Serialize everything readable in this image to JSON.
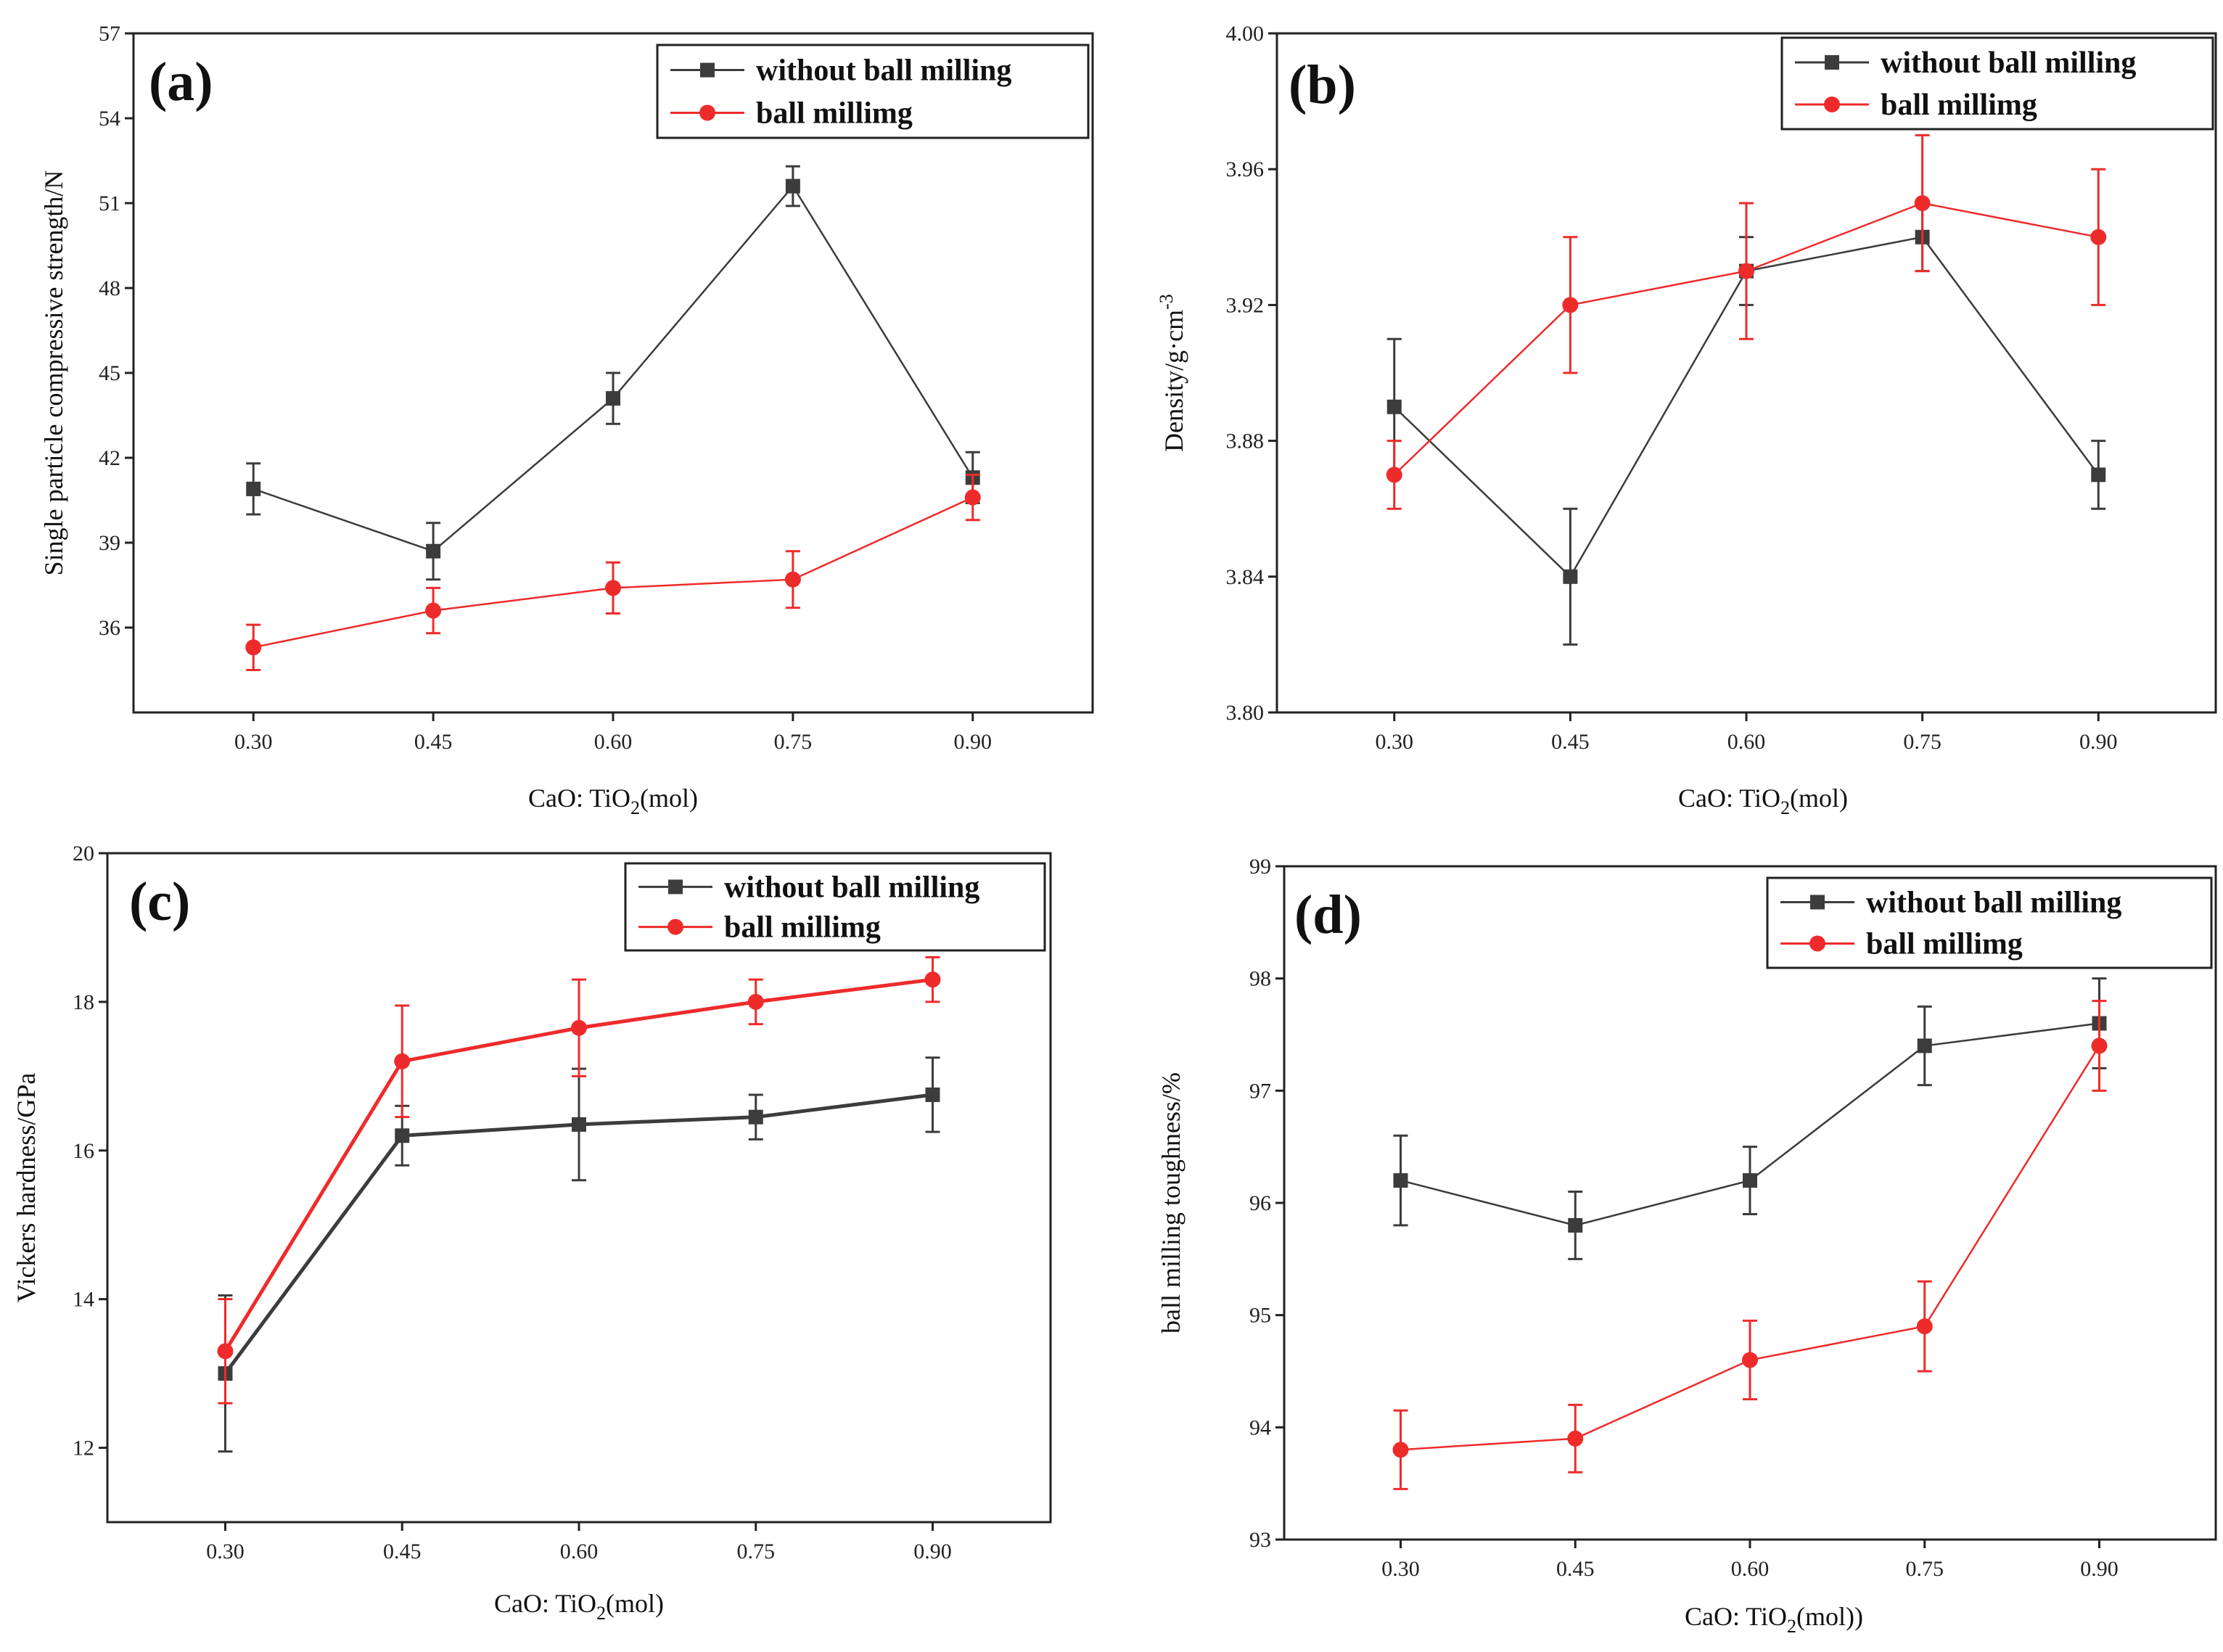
{
  "legend": {
    "black_label": "without ball milling",
    "red_label": "ball millimg"
  },
  "colors": {
    "black": "#3c3c3c",
    "red": "#ee2b2b"
  },
  "chart_data": [
    {
      "type": "line",
      "panel_label": "(a)",
      "xlabel": {
        "pre": "CaO: TiO",
        "sub": "2",
        "post": "(mol)"
      },
      "ylabel": "Single particle compressive strength/N",
      "categories": [
        0.3,
        0.45,
        0.6,
        0.75,
        0.9
      ],
      "x_tick_labels": [
        "0.30",
        "0.45",
        "0.60",
        "0.75",
        "0.90"
      ],
      "ylim": [
        33,
        57
      ],
      "y_ticks": [
        36,
        39,
        42,
        45,
        48,
        51,
        54,
        57
      ],
      "series": [
        {
          "name": "without ball milling",
          "color": "black",
          "marker": "square",
          "values": [
            40.9,
            38.7,
            44.1,
            51.6,
            41.3
          ],
          "errors": [
            0.9,
            1.0,
            0.9,
            0.7,
            0.9
          ]
        },
        {
          "name": "ball millimg",
          "color": "red",
          "marker": "circle",
          "values": [
            35.3,
            36.6,
            37.4,
            37.7,
            40.6
          ],
          "errors": [
            0.8,
            0.8,
            0.9,
            1.0,
            0.8
          ]
        }
      ]
    },
    {
      "type": "line",
      "panel_label": "(b)",
      "xlabel": {
        "pre": "CaO: TiO",
        "sub": "2",
        "post": "(mol)"
      },
      "ylabel": "Density/g·cm",
      "ylabel_sup": "-3",
      "categories": [
        0.3,
        0.45,
        0.6,
        0.75,
        0.9
      ],
      "x_tick_labels": [
        "0.30",
        "0.45",
        "0.60",
        "0.75",
        "0.90"
      ],
      "ylim": [
        3.8,
        4.0
      ],
      "y_ticks": [
        "3.80",
        "3.84",
        "3.88",
        "3.92",
        "3.96",
        "4.00"
      ],
      "series": [
        {
          "name": "without ball milling",
          "color": "black",
          "marker": "square",
          "values": [
            3.89,
            3.84,
            3.93,
            3.94,
            3.87
          ],
          "errors": [
            0.02,
            0.02,
            0.01,
            0.01,
            0.01
          ]
        },
        {
          "name": "ball millimg",
          "color": "red",
          "marker": "circle",
          "values": [
            3.87,
            3.92,
            3.93,
            3.95,
            3.94
          ],
          "errors": [
            0.01,
            0.02,
            0.02,
            0.02,
            0.02
          ]
        }
      ]
    },
    {
      "type": "line",
      "panel_label": "(c)",
      "xlabel": {
        "pre": "CaO: TiO",
        "sub": "2",
        "post": "(mol)"
      },
      "ylabel": "Vickers hardness/GPa",
      "categories": [
        0.3,
        0.45,
        0.6,
        0.75,
        0.9
      ],
      "x_tick_labels": [
        "0.30",
        "0.45",
        "0.60",
        "0.75",
        "0.90"
      ],
      "ylim": [
        11,
        20
      ],
      "y_ticks": [
        12,
        14,
        16,
        18,
        20
      ],
      "series": [
        {
          "name": "without ball milling",
          "color": "black",
          "marker": "square",
          "values": [
            13.0,
            16.2,
            16.35,
            16.45,
            16.75
          ],
          "errors": [
            1.05,
            0.4,
            0.75,
            0.3,
            0.5
          ]
        },
        {
          "name": "ball millimg",
          "color": "red",
          "marker": "circle",
          "values": [
            13.3,
            17.2,
            17.65,
            18.0,
            18.3
          ],
          "errors": [
            0.7,
            0.75,
            0.65,
            0.3,
            0.3
          ]
        }
      ]
    },
    {
      "type": "line",
      "panel_label": "(d)",
      "xlabel": {
        "pre": "CaO: TiO",
        "sub": "2",
        "post": "(mol))"
      },
      "ylabel": "ball milling toughness/%",
      "categories": [
        0.3,
        0.45,
        0.6,
        0.75,
        0.9
      ],
      "x_tick_labels": [
        "0.30",
        "0.45",
        "0.60",
        "0.75",
        "0.90"
      ],
      "ylim": [
        93,
        99
      ],
      "y_ticks": [
        93,
        94,
        95,
        96,
        97,
        98,
        99
      ],
      "series": [
        {
          "name": "without ball milling",
          "color": "black",
          "marker": "square",
          "values": [
            96.2,
            95.8,
            96.2,
            97.4,
            97.6
          ],
          "errors": [
            0.4,
            0.3,
            0.3,
            0.35,
            0.4
          ]
        },
        {
          "name": "ball millimg",
          "color": "red",
          "marker": "circle",
          "values": [
            93.8,
            93.9,
            94.6,
            94.9,
            97.4
          ],
          "errors": [
            0.35,
            0.3,
            0.35,
            0.4,
            0.4
          ]
        }
      ]
    }
  ]
}
